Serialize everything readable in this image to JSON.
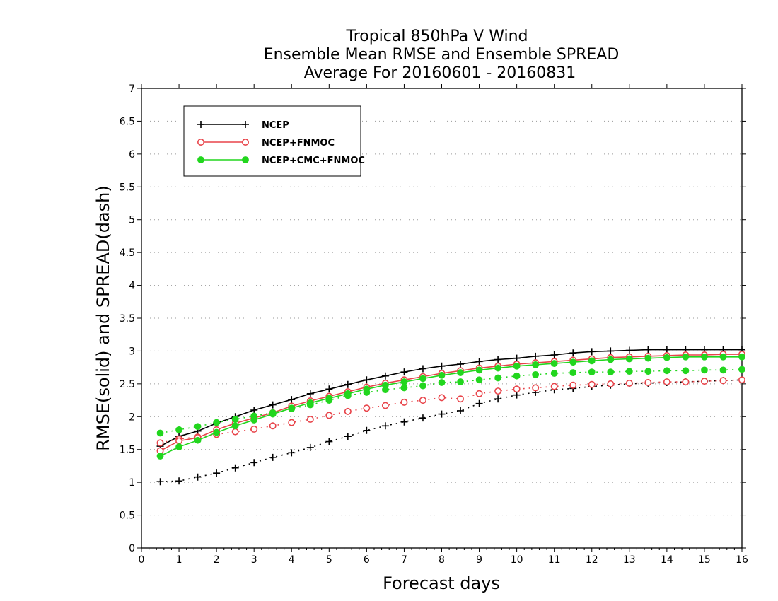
{
  "chart_data": {
    "type": "line",
    "title_lines": [
      "Tropical 850hPa V Wind",
      "Ensemble Mean RMSE and Ensemble SPREAD",
      "Average For 20160601 - 20160831"
    ],
    "xlabel": "Forecast days",
    "ylabel": "RMSE(solid) and SPREAD(dash)",
    "xlim": [
      0,
      16
    ],
    "ylim": [
      0,
      7
    ],
    "xticks": [
      "0",
      "1",
      "2",
      "3",
      "4",
      "5",
      "6",
      "7",
      "8",
      "9",
      "10",
      "11",
      "12",
      "13",
      "14",
      "15",
      "16"
    ],
    "yticks": [
      "0",
      "0.5",
      "1",
      "1.5",
      "2",
      "2.5",
      "3",
      "3.5",
      "4",
      "4.5",
      "5",
      "5.5",
      "6",
      "6.5",
      "7"
    ],
    "grid": "horizontal-dotted",
    "legend_position": "top-left",
    "x": [
      0.5,
      1,
      1.5,
      2,
      2.5,
      3,
      3.5,
      4,
      4.5,
      5,
      5.5,
      6,
      6.5,
      7,
      7.5,
      8,
      8.5,
      9,
      9.5,
      10,
      10.5,
      11,
      11.5,
      12,
      12.5,
      13,
      13.5,
      14,
      14.5,
      15,
      15.5,
      16
    ],
    "series": [
      {
        "name": "NCEP",
        "color": "#000000",
        "marker": "plus",
        "rmse": [
          1.55,
          1.7,
          1.78,
          1.9,
          2.0,
          2.1,
          2.18,
          2.26,
          2.35,
          2.42,
          2.49,
          2.56,
          2.62,
          2.68,
          2.73,
          2.77,
          2.8,
          2.84,
          2.87,
          2.89,
          2.92,
          2.94,
          2.97,
          2.99,
          3.0,
          3.01,
          3.02,
          3.02,
          3.02,
          3.02,
          3.02,
          3.02
        ],
        "spread": [
          1.01,
          1.02,
          1.08,
          1.14,
          1.22,
          1.3,
          1.38,
          1.45,
          1.53,
          1.62,
          1.7,
          1.79,
          1.86,
          1.92,
          1.98,
          2.04,
          2.09,
          2.2,
          2.27,
          2.33,
          2.37,
          2.41,
          2.43,
          2.46,
          2.48,
          2.5,
          2.51,
          2.52,
          2.53,
          2.54,
          2.55,
          2.56
        ]
      },
      {
        "name": "NCEP+FNMOC",
        "color": "#e8444a",
        "marker": "open-circle",
        "rmse": [
          1.48,
          1.63,
          1.68,
          1.8,
          1.9,
          1.98,
          2.06,
          2.16,
          2.24,
          2.31,
          2.38,
          2.45,
          2.51,
          2.56,
          2.61,
          2.66,
          2.7,
          2.74,
          2.77,
          2.8,
          2.82,
          2.84,
          2.86,
          2.88,
          2.9,
          2.91,
          2.92,
          2.93,
          2.94,
          2.94,
          2.95,
          2.95
        ],
        "spread": [
          1.6,
          1.66,
          1.69,
          1.73,
          1.77,
          1.81,
          1.86,
          1.91,
          1.96,
          2.02,
          2.08,
          2.13,
          2.17,
          2.22,
          2.25,
          2.29,
          2.27,
          2.35,
          2.39,
          2.42,
          2.44,
          2.46,
          2.48,
          2.49,
          2.5,
          2.51,
          2.52,
          2.53,
          2.53,
          2.54,
          2.55,
          2.56
        ]
      },
      {
        "name": "NCEP+CMC+FNMOC",
        "color": "#22d61e",
        "marker": "filled-circle",
        "rmse": [
          1.4,
          1.54,
          1.64,
          1.76,
          1.86,
          1.95,
          2.04,
          2.13,
          2.21,
          2.28,
          2.35,
          2.42,
          2.48,
          2.53,
          2.58,
          2.63,
          2.67,
          2.71,
          2.74,
          2.77,
          2.79,
          2.81,
          2.83,
          2.85,
          2.87,
          2.88,
          2.89,
          2.9,
          2.91,
          2.91,
          2.91,
          2.91
        ],
        "spread": [
          1.75,
          1.8,
          1.85,
          1.91,
          1.96,
          2.01,
          2.06,
          2.12,
          2.18,
          2.25,
          2.32,
          2.37,
          2.41,
          2.44,
          2.47,
          2.52,
          2.53,
          2.56,
          2.59,
          2.62,
          2.64,
          2.66,
          2.67,
          2.68,
          2.68,
          2.69,
          2.69,
          2.7,
          2.7,
          2.71,
          2.71,
          2.72
        ]
      }
    ]
  }
}
